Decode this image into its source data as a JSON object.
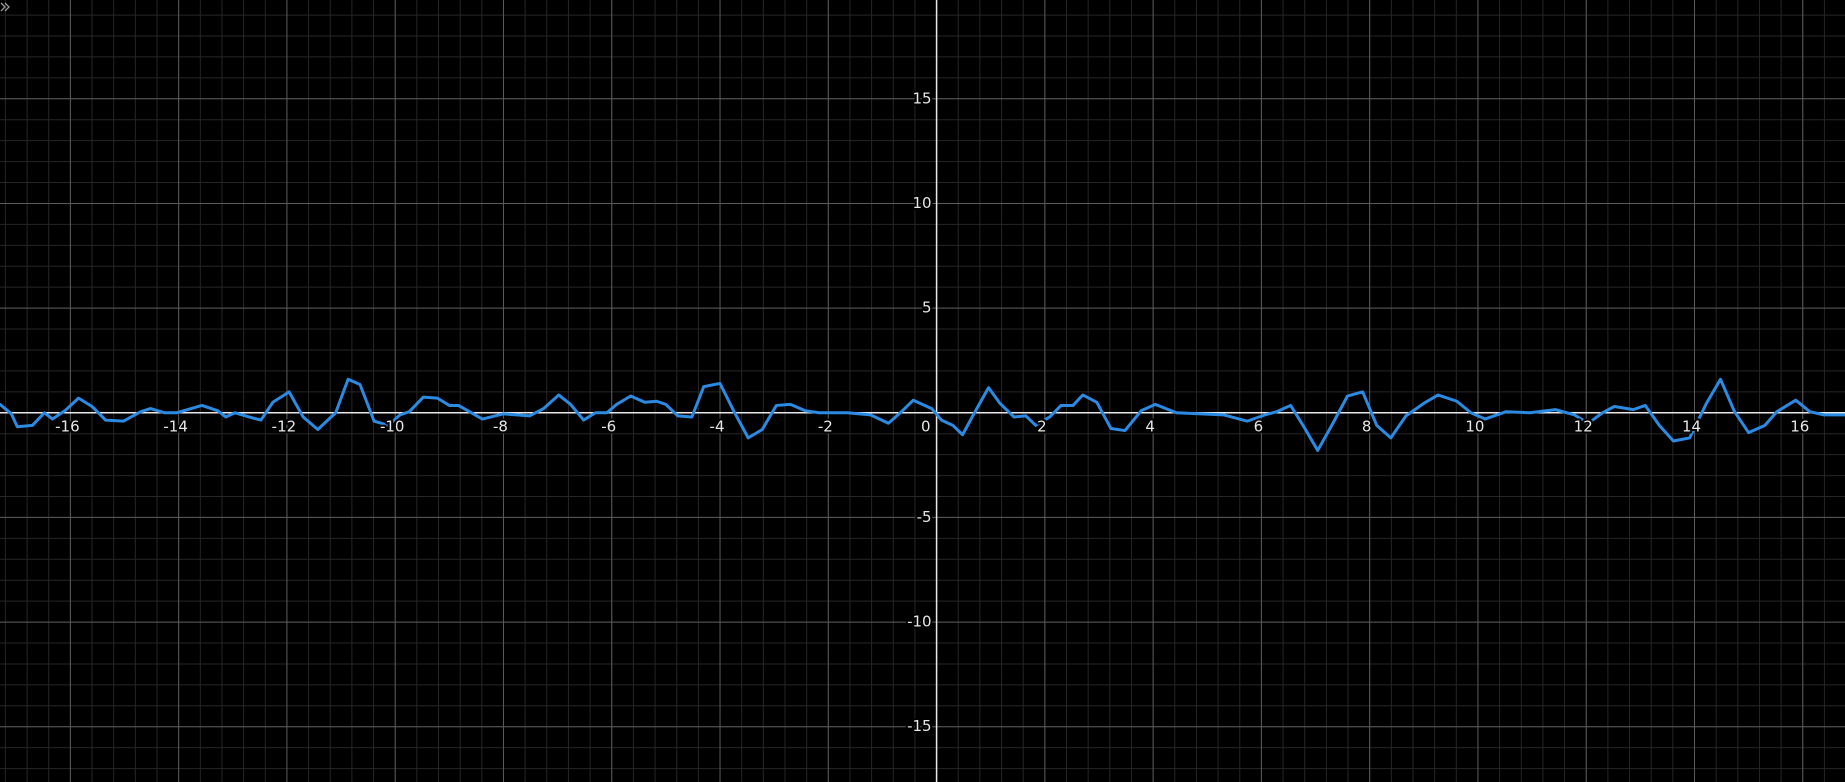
{
  "chart_data": {
    "type": "line",
    "grid": true,
    "xlim": [
      -17.3,
      16.78
    ],
    "ylim": [
      -17.64,
      19.72
    ],
    "xticks": [
      -16,
      -14,
      -12,
      -10,
      -8,
      -6,
      -4,
      -2,
      0,
      2,
      4,
      6,
      8,
      10,
      12,
      14,
      16
    ],
    "yticks": [
      -15,
      -10,
      -5,
      5,
      10,
      15
    ],
    "series": [
      {
        "color": "#2b8ae2",
        "x": [
          -17.3,
          -17.09,
          -16.98,
          -16.7,
          -16.48,
          -16.33,
          -16.1,
          -15.85,
          -15.6,
          -15.35,
          -15.02,
          -14.7,
          -14.52,
          -14.26,
          -14.04,
          -13.57,
          -13.28,
          -13.13,
          -12.96,
          -12.7,
          -12.48,
          -12.26,
          -11.96,
          -11.7,
          -11.43,
          -11.1,
          -10.87,
          -10.65,
          -10.39,
          -10.13,
          -9.91,
          -9.74,
          -9.48,
          -9.22,
          -9.0,
          -8.83,
          -8.39,
          -8.0,
          -7.52,
          -7.26,
          -6.98,
          -6.76,
          -6.52,
          -6.3,
          -6.09,
          -5.91,
          -5.65,
          -5.39,
          -5.17,
          -5.0,
          -4.78,
          -4.52,
          -4.3,
          -4.0,
          -3.74,
          -3.48,
          -3.22,
          -2.96,
          -2.7,
          -2.43,
          -2.17,
          -1.65,
          -1.22,
          -0.89,
          -0.67,
          -0.43,
          -0.09,
          0.09,
          0.3,
          0.48,
          0.7,
          0.96,
          1.17,
          1.43,
          1.65,
          1.83,
          2.09,
          2.3,
          2.52,
          2.7,
          2.96,
          3.22,
          3.48,
          3.78,
          4.04,
          4.43,
          5.3,
          5.74,
          6.07,
          6.28,
          6.54,
          6.78,
          7.04,
          7.3,
          7.59,
          7.87,
          8.13,
          8.39,
          8.67,
          9.0,
          9.26,
          9.61,
          9.87,
          10.13,
          10.52,
          10.96,
          11.43,
          11.78,
          12.04,
          12.3,
          12.52,
          12.87,
          13.09,
          13.35,
          13.61,
          13.91,
          14.22,
          14.48,
          14.74,
          15.0,
          15.3,
          15.52,
          15.87,
          16.13,
          16.39,
          16.78
        ],
        "values": [
          0.4,
          -0.05,
          -0.67,
          -0.6,
          0,
          -0.3,
          0.1,
          0.7,
          0.3,
          -0.35,
          -0.4,
          0.05,
          0.2,
          0,
          0,
          0.35,
          0.1,
          -0.2,
          0,
          -0.2,
          -0.35,
          0.5,
          1.0,
          -0.2,
          -0.8,
          0,
          1.6,
          1.35,
          -0.4,
          -0.6,
          -0.1,
          0.05,
          0.75,
          0.7,
          0.35,
          0.35,
          -0.3,
          -0.05,
          -0.15,
          0.2,
          0.85,
          0.4,
          -0.35,
          0,
          0,
          0.4,
          0.8,
          0.5,
          0.55,
          0.4,
          -0.15,
          -0.2,
          1.25,
          1.4,
          0.05,
          -1.2,
          -0.8,
          0.35,
          0.4,
          0.1,
          0,
          0,
          -0.1,
          -0.5,
          0,
          0.6,
          0.2,
          -0.35,
          -0.6,
          -1.05,
          0,
          1.2,
          0.45,
          -0.2,
          -0.15,
          -0.6,
          -0.2,
          0.35,
          0.35,
          0.85,
          0.5,
          -0.75,
          -0.85,
          0.1,
          0.4,
          0,
          -0.1,
          -0.4,
          -0.1,
          0.05,
          0.35,
          -0.65,
          -1.8,
          -0.6,
          0.8,
          1.0,
          -0.6,
          -1.2,
          -0.15,
          0.45,
          0.85,
          0.55,
          0,
          -0.3,
          0.05,
          0,
          0.15,
          -0.1,
          -0.5,
          0,
          0.3,
          0.15,
          0.35,
          -0.6,
          -1.35,
          -1.2,
          0.45,
          1.6,
          0.05,
          -0.95,
          -0.6,
          0.05,
          0.6,
          0.05,
          -0.1,
          -0.1
        ]
      }
    ]
  }
}
